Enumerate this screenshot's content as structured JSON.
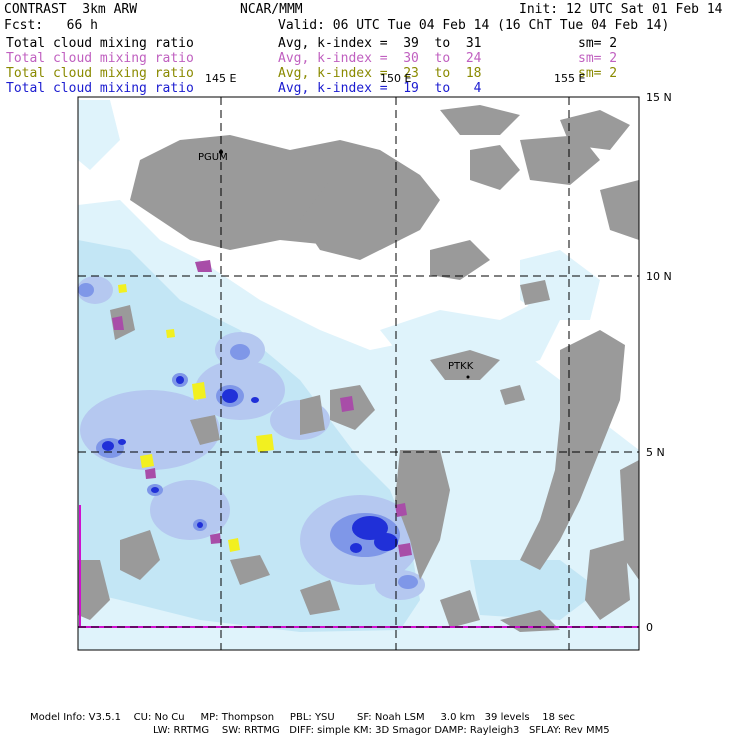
{
  "header": {
    "model": "CONTRAST  3km ARW",
    "org": "NCAR/MMM",
    "init": "Init: 12 UTC Sat 01 Feb 14",
    "fcst": "Fcst:   66 h",
    "valid": "Valid: 06 UTC Tue 04 Feb 14 (16 ChT Tue 04 Feb 14)"
  },
  "fields": [
    {
      "name": "Total cloud mixing ratio",
      "avg": "Avg, k-index =  39  to  31",
      "sm": "sm= 2",
      "color": "#000000"
    },
    {
      "name": "Total cloud mixing ratio",
      "avg": "Avg, k-index =  30  to  24",
      "sm": "sm= 2",
      "color": "#c060c0"
    },
    {
      "name": "Total cloud mixing ratio",
      "avg": "Avg, k-index =  23  to  18",
      "sm": "sm= 2",
      "color": "#8a8a00"
    },
    {
      "name": "Total cloud mixing ratio",
      "avg": "Avg, k-index =  19  to   4",
      "sm": "",
      "color": "#1c1cd0"
    }
  ],
  "map": {
    "lon_labels": [
      "145 E",
      "150 E",
      "155 E"
    ],
    "lat_labels": [
      "15 N",
      "10 N",
      "5 N",
      "0"
    ],
    "stations": [
      "PGUM",
      "PTKK"
    ]
  },
  "footer": {
    "line1": "Model Info: V3.5.1    CU: No Cu     MP: Thompson     PBL: YSU       SF: Noah LSM     3.0 km   39 levels    18 sec",
    "line2": "LW: RRTMG    SW: RRTMG   DIFF: simple KM: 3D Smagor DAMP: Rayleigh3   SFLAY: Rev MM5"
  },
  "colors": {
    "background": "#ffffff",
    "gray_cloud": "#9a9a9a",
    "light_cyan": "#dff3fb",
    "cyan": "#c3e6f5",
    "blue1": "#b5c8f0",
    "blue2": "#7f97e8",
    "blue3": "#3848e0",
    "blue4": "#1010d8",
    "magenta": "#a84da8",
    "yellow": "#f2f020",
    "frame_magenta": "#d010d0"
  }
}
